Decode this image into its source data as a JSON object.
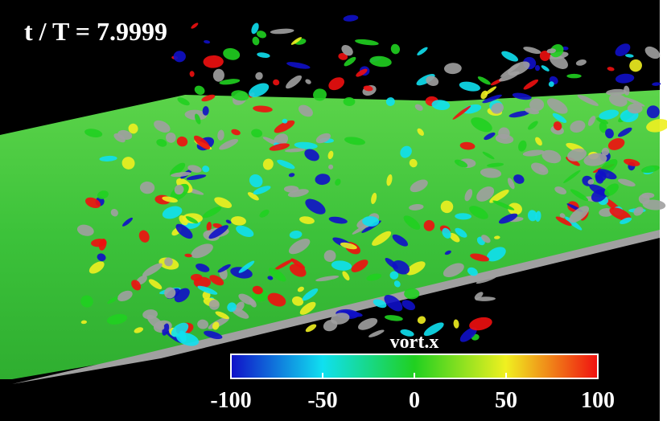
{
  "annotation": "t / T = 7.9999",
  "colorbar": {
    "label": "vort.x",
    "lim": [
      -100,
      100
    ],
    "ticks": [
      -100,
      -50,
      0,
      50,
      100
    ],
    "colors": [
      "#1010c8",
      "#10e0f0",
      "#20d020",
      "#f0f020",
      "#f01010"
    ]
  }
}
